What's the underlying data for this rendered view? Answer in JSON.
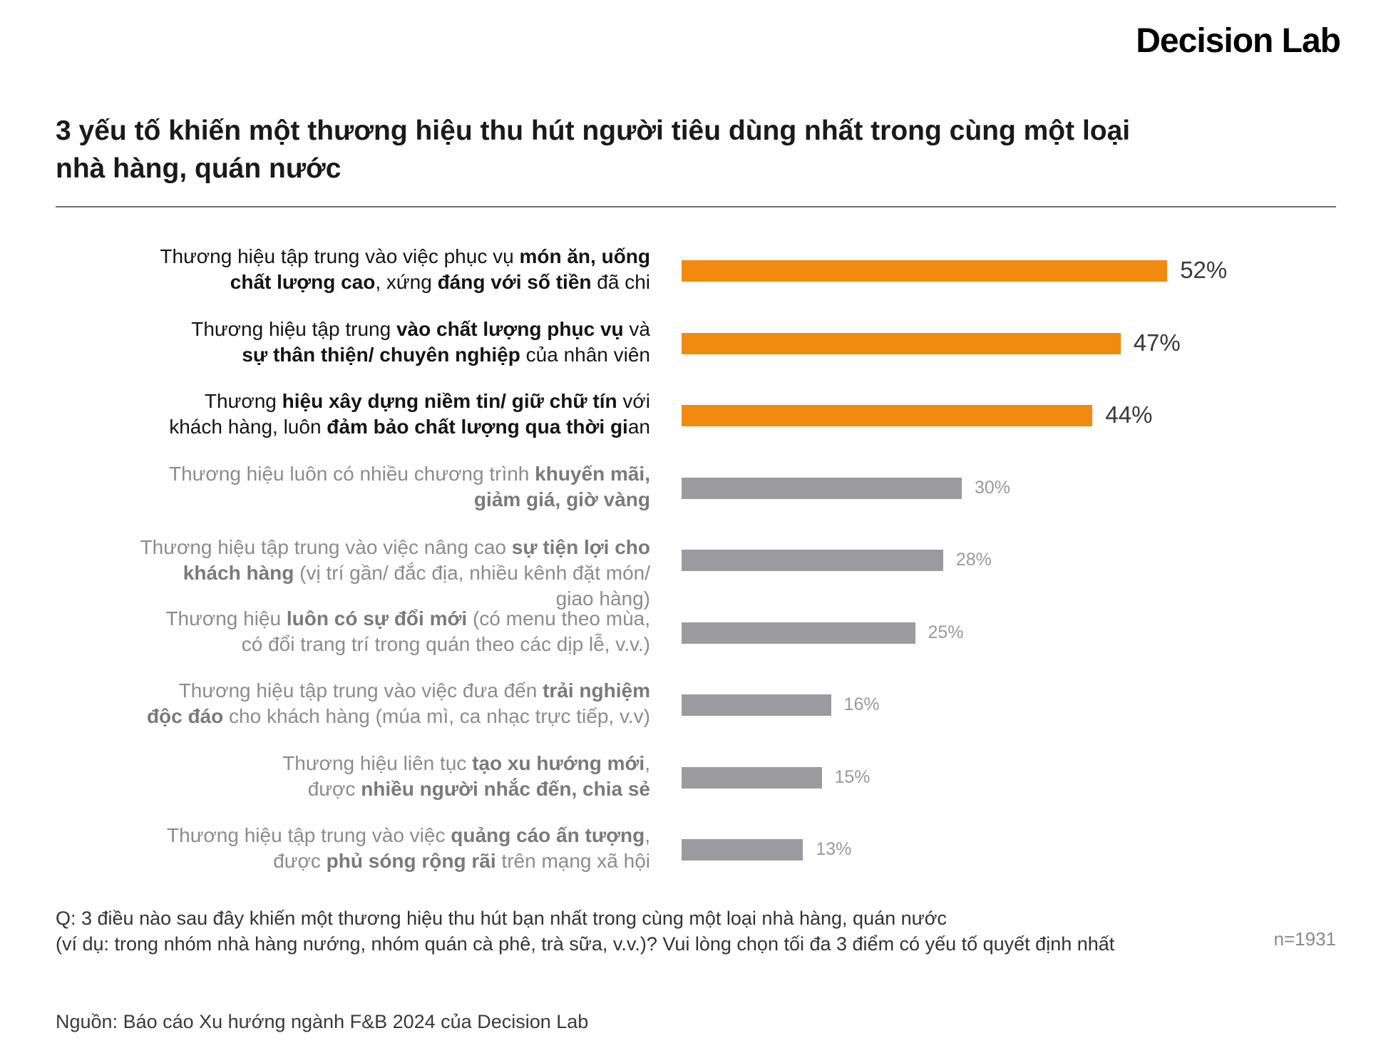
{
  "brand": "Decision Lab",
  "chart_data": {
    "type": "bar",
    "orientation": "horizontal",
    "title_line1": "3 yếu tố khiến một thương hiệu thu hút người tiêu dùng nhất trong cùng một loại",
    "title_line2": "nhà hàng, quán nước",
    "unit": "%",
    "xlim": [
      0,
      100
    ],
    "highlight_color": "#f28a0f",
    "muted_color": "#9b9a9f",
    "categories": [
      {
        "highlight": true,
        "label_lines": [
          [
            {
              "t": "Thương hiệu tập trung vào việc phục vụ "
            },
            {
              "t": "món ăn, uống",
              "b": true
            }
          ],
          [
            {
              "t": "chất lượng cao",
              "b": true
            },
            {
              "t": ", xứng "
            },
            {
              "t": "đáng với số tiền",
              "b": true
            },
            {
              "t": " đã chi"
            }
          ]
        ]
      },
      {
        "highlight": true,
        "label_lines": [
          [
            {
              "t": "Thương hiệu tập trung "
            },
            {
              "t": "vào chất lượng phục vụ",
              "b": true
            },
            {
              "t": " và"
            }
          ],
          [
            {
              "t": "sự thân thiện/ chuyên nghiệp",
              "b": true
            },
            {
              "t": " của nhân viên"
            }
          ]
        ]
      },
      {
        "highlight": true,
        "label_lines": [
          [
            {
              "t": "Thương "
            },
            {
              "t": "hiệu xây dựng niềm tin/ giữ chữ tín",
              "b": true
            },
            {
              "t": " với"
            }
          ],
          [
            {
              "t": "khách hàng, luôn "
            },
            {
              "t": "đảm bảo chất lượng qua thời gi",
              "b": true
            },
            {
              "t": "an"
            }
          ]
        ]
      },
      {
        "highlight": false,
        "label_lines": [
          [
            {
              "t": "Thương hiệu luôn có nhiều chương trình "
            },
            {
              "t": "khuyến mãi,",
              "b": true
            }
          ],
          [
            {
              "t": "giảm giá, giờ vàng",
              "b": true
            }
          ]
        ]
      },
      {
        "highlight": false,
        "label_lines": [
          [
            {
              "t": "Thương hiệu tập trung vào việc nâng cao "
            },
            {
              "t": "sự tiện lợi cho",
              "b": true
            }
          ],
          [
            {
              "t": "khách hàng",
              "b": true
            },
            {
              "t": " (vị trí gần/ đắc địa, nhiều kênh đặt món/"
            }
          ],
          [
            {
              "t": "giao hàng)"
            }
          ]
        ]
      },
      {
        "highlight": false,
        "label_lines": [
          [
            {
              "t": "Thương hiệu "
            },
            {
              "t": "luôn có sự đổi mới",
              "b": true
            },
            {
              "t": " (có menu theo mùa,"
            }
          ],
          [
            {
              "t": "có đổi trang trí trong quán theo các dịp lễ, v.v.)"
            }
          ]
        ]
      },
      {
        "highlight": false,
        "label_lines": [
          [
            {
              "t": "Thương hiệu tập trung vào việc đưa đến "
            },
            {
              "t": "trải nghiệm",
              "b": true
            }
          ],
          [
            {
              "t": "độc đáo",
              "b": true
            },
            {
              "t": " cho khách hàng (múa mì, ca nhạc trực tiếp, v.v)"
            }
          ]
        ]
      },
      {
        "highlight": false,
        "label_lines": [
          [
            {
              "t": "Thương hiệu liên tục "
            },
            {
              "t": "tạo xu hướng mới",
              "b": true
            },
            {
              "t": ","
            }
          ],
          [
            {
              "t": "được "
            },
            {
              "t": "nhiều người nhắc đến, chia sẻ",
              "b": true
            }
          ]
        ]
      },
      {
        "highlight": false,
        "label_lines": [
          [
            {
              "t": "Thương hiệu tập trung vào việc "
            },
            {
              "t": "quảng cáo ấn tượng",
              "b": true
            },
            {
              "t": ","
            }
          ],
          [
            {
              "t": "được "
            },
            {
              "t": "phủ sóng rộng rãi",
              "b": true
            },
            {
              "t": " trên mạng xã hội"
            }
          ]
        ]
      }
    ],
    "values": [
      52,
      47,
      44,
      30,
      28,
      25,
      16,
      15,
      13
    ],
    "value_labels": [
      "52%",
      "47%",
      "44%",
      "30%",
      "28%",
      "25%",
      "16%",
      "15%",
      "13%"
    ]
  },
  "footer": {
    "question_line1": "Q: 3 điều nào sau đây khiến một thương hiệu thu hút bạn nhất trong cùng một loại nhà hàng, quán nước",
    "question_line2": "(ví dụ: trong nhóm nhà hàng nướng, nhóm quán cà phê, trà sữa, v.v.)? Vui lòng chọn tối đa 3 điểm có yếu tố quyết định nhất",
    "sample_size": "n=1931",
    "source": "Nguồn: Báo cáo Xu hướng ngành F&B 2024 của Decision Lab"
  }
}
